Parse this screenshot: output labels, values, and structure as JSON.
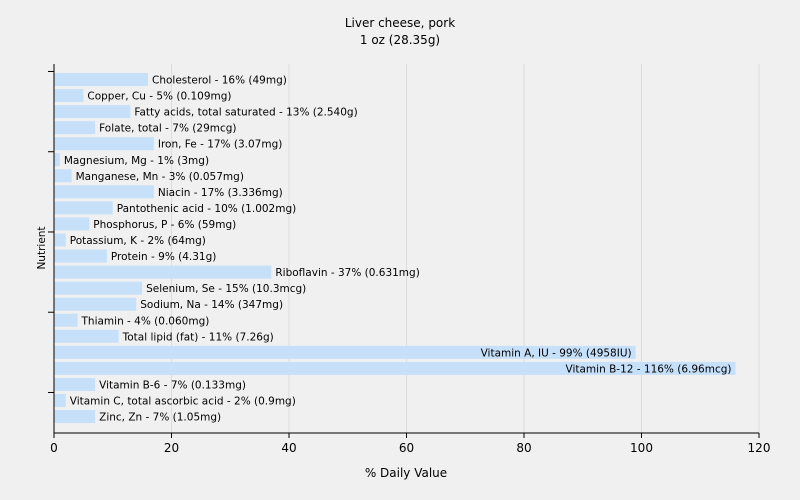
{
  "chart_data": {
    "type": "bar",
    "orientation": "horizontal",
    "title": "Liver cheese, pork",
    "subtitle": "1 oz (28.35g)",
    "xlabel": "% Daily Value",
    "ylabel": "Nutrient",
    "xlim": [
      0,
      120
    ],
    "xticks": [
      "0",
      "20",
      "40",
      "60",
      "80",
      "100",
      "120"
    ],
    "grid": true,
    "bar_color": "#c6e0fa",
    "categories": [
      "Cholesterol",
      "Copper, Cu",
      "Fatty acids, total saturated",
      "Folate, total",
      "Iron, Fe",
      "Magnesium, Mg",
      "Manganese, Mn",
      "Niacin",
      "Pantothenic acid",
      "Phosphorus, P",
      "Potassium, K",
      "Protein",
      "Riboflavin",
      "Selenium, Se",
      "Sodium, Na",
      "Thiamin",
      "Total lipid (fat)",
      "Vitamin A, IU",
      "Vitamin B-12",
      "Vitamin B-6",
      "Vitamin C, total ascorbic acid",
      "Zinc, Zn"
    ],
    "values": [
      16,
      5,
      13,
      7,
      17,
      1,
      3,
      17,
      10,
      6,
      2,
      9,
      37,
      15,
      14,
      4,
      11,
      99,
      116,
      7,
      2,
      7
    ],
    "labels": [
      "Cholesterol - 16% (49mg)",
      "Copper, Cu - 5% (0.109mg)",
      "Fatty acids, total saturated - 13% (2.540g)",
      "Folate, total - 7% (29mcg)",
      "Iron, Fe - 17% (3.07mg)",
      "Magnesium, Mg - 1% (3mg)",
      "Manganese, Mn - 3% (0.057mg)",
      "Niacin - 17% (3.336mg)",
      "Pantothenic acid - 10% (1.002mg)",
      "Phosphorus, P - 6% (59mg)",
      "Potassium, K - 2% (64mg)",
      "Protein - 9% (4.31g)",
      "Riboflavin - 37% (0.631mg)",
      "Selenium, Se - 15% (10.3mcg)",
      "Sodium, Na - 14% (347mg)",
      "Thiamin - 4% (0.060mg)",
      "Total lipid (fat) - 11% (7.26g)",
      "Vitamin A, IU - 99% (4958IU)",
      "Vitamin B-12 - 116% (6.96mcg)",
      "Vitamin B-6 - 7% (0.133mg)",
      "Vitamin C, total ascorbic acid - 2% (0.9mg)",
      "Zinc, Zn - 7% (1.05mg)"
    ]
  }
}
